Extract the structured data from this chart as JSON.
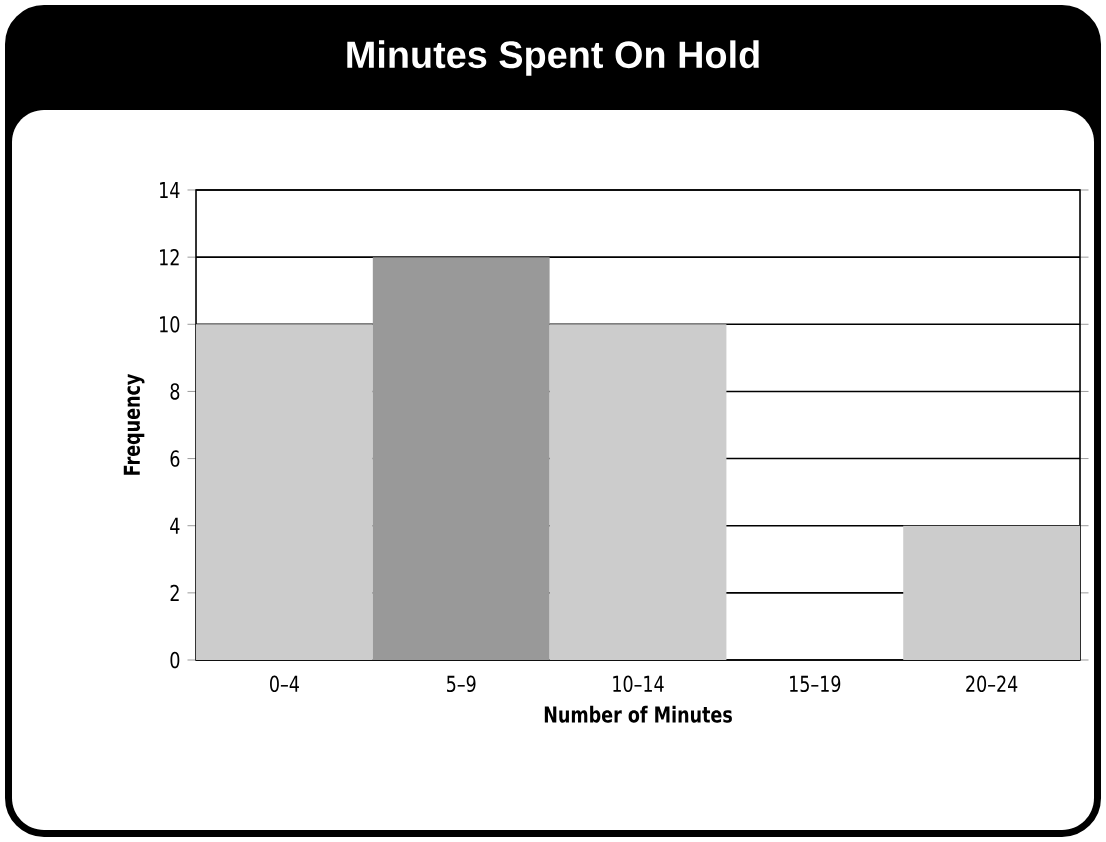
{
  "chart_data": {
    "type": "bar",
    "title": "Minutes Spent On Hold",
    "xlabel": "Number of Minutes",
    "ylabel": "Frequency",
    "categories": [
      "0–4",
      "5–9",
      "10–14",
      "15–19",
      "20–24"
    ],
    "values": [
      10,
      12,
      10,
      0,
      4
    ],
    "colors": [
      "#cccccc",
      "#999999",
      "#cccccc",
      "#cccccc",
      "#cccccc"
    ],
    "ylim": [
      0,
      14
    ],
    "yticks": [
      0,
      2,
      4,
      6,
      8,
      10,
      12,
      14
    ],
    "grid": "y"
  }
}
